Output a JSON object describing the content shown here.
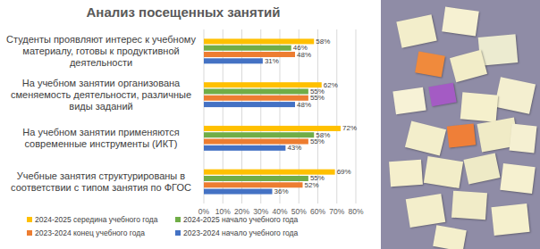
{
  "chart_data": {
    "type": "bar",
    "title": "Анализ посещенных занятий",
    "orientation": "horizontal",
    "data_labels": true,
    "grid": true,
    "legend": "bottom",
    "categories": [
      "Студенты проявляют интерес к учебному материалу, готовы к продуктивной деятельности",
      "На учебном занятии организована сменяемость деятельности, различные виды заданий",
      "На учебном занятии применяются современные инструменты (ИКТ)",
      "Учебные занятия структурированы в соответствии с типом занятия по ФГОС"
    ],
    "series": [
      {
        "name": "2024-2025 середина учебного года",
        "color": "#ffc000",
        "values": [
          58,
          62,
          72,
          69
        ],
        "value_labels": [
          "58%",
          "62%",
          "72%",
          "69%"
        ]
      },
      {
        "name": "2024-2025 начало учебного года",
        "color": "#70ad47",
        "values": [
          46,
          55,
          58,
          55
        ],
        "value_labels": [
          "46%",
          "55%",
          "58%",
          "55%"
        ]
      },
      {
        "name": "2023-2024 конец учебного года",
        "color": "#ed7d31",
        "values": [
          48,
          55,
          55,
          52
        ],
        "value_labels": [
          "48%",
          "55%",
          "55%",
          "52%"
        ]
      },
      {
        "name": "2023-2024 начало учебного года",
        "color": "#4472c4",
        "values": [
          31,
          48,
          43,
          36
        ],
        "value_labels": [
          "31%",
          "48%",
          "43%",
          "36%"
        ]
      }
    ],
    "xlim": [
      0,
      80
    ],
    "xticks": [
      {
        "value": 0,
        "label": "0%"
      },
      {
        "value": 10,
        "label": "10%"
      },
      {
        "value": 20,
        "label": "20%"
      },
      {
        "value": 30,
        "label": "30%"
      },
      {
        "value": 40,
        "label": "40%"
      },
      {
        "value": 50,
        "label": "50%"
      },
      {
        "value": 60,
        "label": "60%"
      },
      {
        "value": 70,
        "label": "70%"
      },
      {
        "value": 80,
        "label": "80%"
      }
    ]
  }
}
